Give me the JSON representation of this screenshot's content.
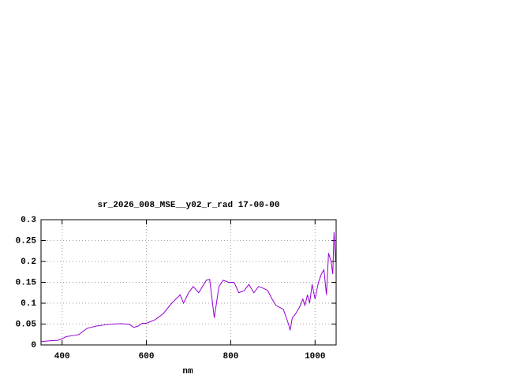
{
  "chart_data": {
    "type": "line",
    "title": "sr_2026_008_MSE__y02_r_rad 17-00-00",
    "x_label": "nm",
    "x": [
      350,
      370,
      390,
      400,
      410,
      430,
      440,
      450,
      460,
      480,
      500,
      520,
      540,
      560,
      570,
      580,
      590,
      600,
      620,
      640,
      660,
      680,
      688,
      700,
      711,
      724,
      742,
      750,
      761,
      772,
      782,
      795,
      808,
      819,
      832,
      843,
      855,
      866,
      879,
      888,
      898,
      907,
      916,
      925,
      937,
      941,
      946,
      954,
      963,
      971,
      976,
      982,
      987,
      993,
      1000,
      1008,
      1015,
      1021,
      1027,
      1032,
      1038,
      1042,
      1045,
      1049
    ],
    "series": [
      {
        "color": "#9400d3",
        "values": [
          0.008,
          0.01,
          0.011,
          0.015,
          0.02,
          0.023,
          0.025,
          0.033,
          0.04,
          0.045,
          0.048,
          0.05,
          0.051,
          0.049,
          0.042,
          0.045,
          0.052,
          0.052,
          0.06,
          0.075,
          0.1,
          0.12,
          0.1,
          0.125,
          0.14,
          0.125,
          0.155,
          0.157,
          0.065,
          0.14,
          0.155,
          0.15,
          0.15,
          0.125,
          0.13,
          0.145,
          0.125,
          0.14,
          0.135,
          0.13,
          0.11,
          0.095,
          0.09,
          0.085,
          0.05,
          0.035,
          0.065,
          0.075,
          0.09,
          0.11,
          0.095,
          0.12,
          0.1,
          0.145,
          0.11,
          0.15,
          0.17,
          0.18,
          0.12,
          0.22,
          0.2,
          0.17,
          0.27,
          0.2
        ]
      }
    ],
    "xlim": [
      350,
      1050
    ],
    "ylim": [
      0,
      0.3
    ],
    "xticks": [
      400,
      600,
      800,
      1000
    ],
    "yticks": [
      0,
      0.05,
      0.1,
      0.15,
      0.2,
      0.25,
      0.3
    ],
    "grid": true
  }
}
